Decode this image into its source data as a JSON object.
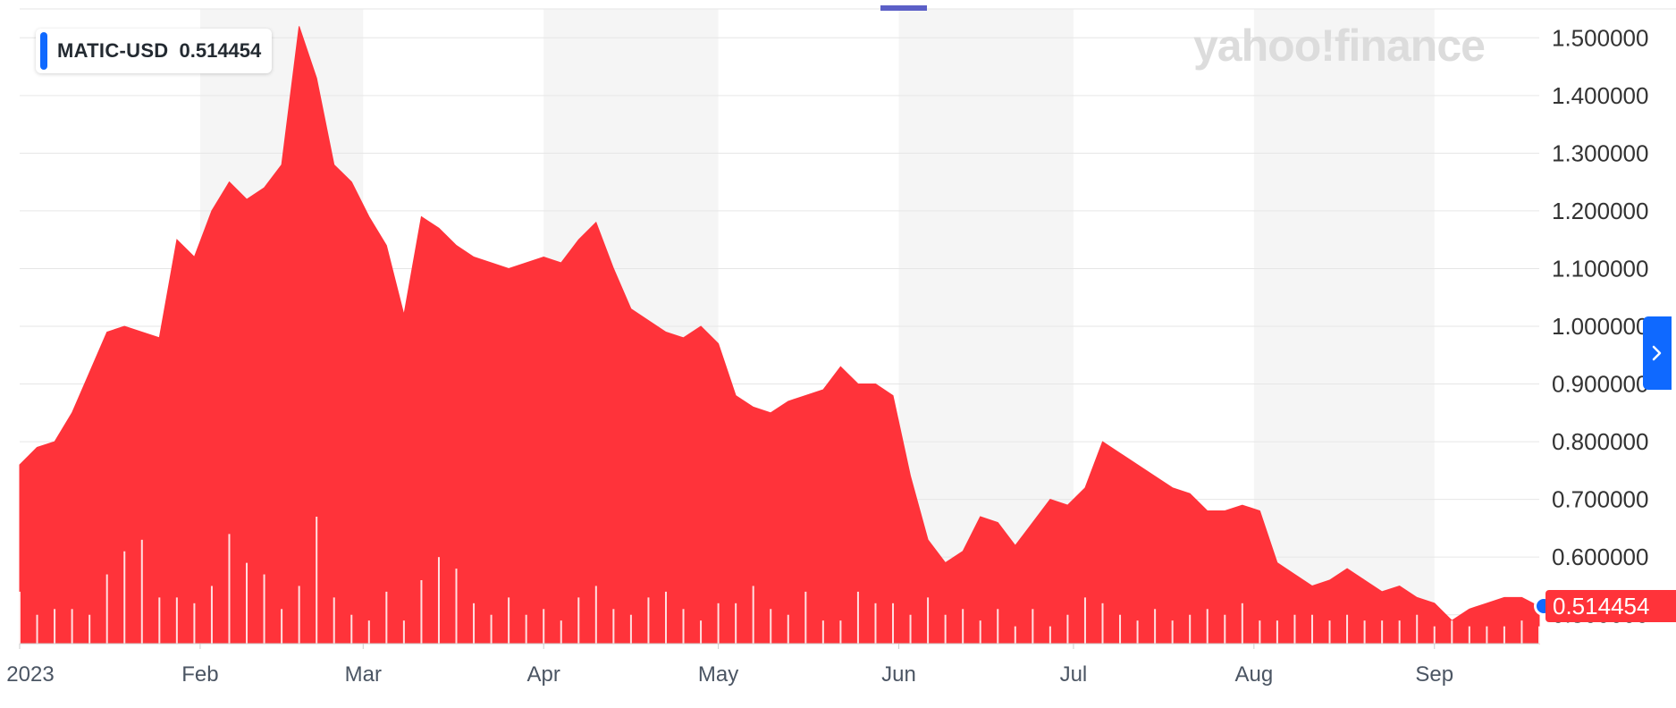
{
  "legend": {
    "symbol": "MATIC-USD",
    "value": "0.514454"
  },
  "watermark": "yahoo!finance",
  "last_price_label": "0.514454",
  "colors": {
    "area": "#ff333a",
    "accent": "#0f69ff",
    "band": "#f5f5f5",
    "grid": "#e6e6e6",
    "top_marker": "#5b5fc7"
  },
  "icons": {
    "nav": "chevron-right-icon",
    "dot": "current-price-dot"
  },
  "chart_data": {
    "type": "area",
    "title": "",
    "xlabel": "",
    "ylabel": "",
    "x_tick_labels": [
      "2023",
      "Feb",
      "Mar",
      "Apr",
      "May",
      "Jun",
      "Jul",
      "Aug",
      "Sep"
    ],
    "y_tick_labels": [
      "0.500000",
      "0.600000",
      "0.700000",
      "0.800000",
      "0.900000",
      "1.000000",
      "1.100000",
      "1.200000",
      "1.300000",
      "1.400000",
      "1.500000"
    ],
    "ylim": [
      0.45,
      1.55
    ],
    "grid": true,
    "legend": "top-left",
    "series": [
      {
        "name": "MATIC-USD",
        "x": [
          "2023-01-01",
          "2023-01-04",
          "2023-01-07",
          "2023-01-10",
          "2023-01-13",
          "2023-01-16",
          "2023-01-19",
          "2023-01-22",
          "2023-01-25",
          "2023-01-28",
          "2023-01-31",
          "2023-02-03",
          "2023-02-06",
          "2023-02-09",
          "2023-02-12",
          "2023-02-15",
          "2023-02-18",
          "2023-02-21",
          "2023-02-24",
          "2023-02-27",
          "2023-03-02",
          "2023-03-05",
          "2023-03-08",
          "2023-03-11",
          "2023-03-14",
          "2023-03-17",
          "2023-03-20",
          "2023-03-23",
          "2023-03-26",
          "2023-03-29",
          "2023-04-01",
          "2023-04-04",
          "2023-04-07",
          "2023-04-10",
          "2023-04-13",
          "2023-04-16",
          "2023-04-19",
          "2023-04-22",
          "2023-04-25",
          "2023-04-28",
          "2023-05-01",
          "2023-05-04",
          "2023-05-07",
          "2023-05-10",
          "2023-05-13",
          "2023-05-16",
          "2023-05-19",
          "2023-05-22",
          "2023-05-25",
          "2023-05-28",
          "2023-05-31",
          "2023-06-03",
          "2023-06-06",
          "2023-06-09",
          "2023-06-12",
          "2023-06-15",
          "2023-06-18",
          "2023-06-21",
          "2023-06-24",
          "2023-06-27",
          "2023-06-30",
          "2023-07-03",
          "2023-07-06",
          "2023-07-09",
          "2023-07-12",
          "2023-07-15",
          "2023-07-18",
          "2023-07-21",
          "2023-07-24",
          "2023-07-27",
          "2023-07-30",
          "2023-08-02",
          "2023-08-05",
          "2023-08-08",
          "2023-08-11",
          "2023-08-14",
          "2023-08-17",
          "2023-08-20",
          "2023-08-23",
          "2023-08-26",
          "2023-08-29",
          "2023-09-01",
          "2023-09-04",
          "2023-09-07",
          "2023-09-10",
          "2023-09-13",
          "2023-09-16",
          "2023-09-19"
        ],
        "values": [
          0.76,
          0.79,
          0.8,
          0.85,
          0.92,
          0.99,
          1.0,
          0.99,
          0.98,
          1.15,
          1.12,
          1.2,
          1.25,
          1.22,
          1.24,
          1.28,
          1.52,
          1.43,
          1.28,
          1.25,
          1.19,
          1.14,
          1.02,
          1.19,
          1.17,
          1.14,
          1.12,
          1.11,
          1.1,
          1.11,
          1.12,
          1.11,
          1.15,
          1.18,
          1.1,
          1.03,
          1.01,
          0.99,
          0.98,
          1.0,
          0.97,
          0.88,
          0.86,
          0.85,
          0.87,
          0.88,
          0.89,
          0.93,
          0.9,
          0.9,
          0.88,
          0.74,
          0.63,
          0.59,
          0.61,
          0.67,
          0.66,
          0.62,
          0.66,
          0.7,
          0.69,
          0.72,
          0.8,
          0.78,
          0.76,
          0.74,
          0.72,
          0.71,
          0.68,
          0.68,
          0.69,
          0.68,
          0.59,
          0.57,
          0.55,
          0.56,
          0.58,
          0.56,
          0.54,
          0.55,
          0.53,
          0.52,
          0.49,
          0.51,
          0.52,
          0.53,
          0.53,
          0.514454
        ]
      }
    ],
    "volume": {
      "name": "Volume",
      "values": [
        0.09,
        0.05,
        0.06,
        0.06,
        0.05,
        0.12,
        0.16,
        0.18,
        0.08,
        0.08,
        0.07,
        0.1,
        0.19,
        0.14,
        0.12,
        0.06,
        0.1,
        0.22,
        0.08,
        0.05,
        0.04,
        0.09,
        0.04,
        0.11,
        0.15,
        0.13,
        0.07,
        0.05,
        0.08,
        0.05,
        0.06,
        0.04,
        0.08,
        0.1,
        0.06,
        0.05,
        0.08,
        0.09,
        0.06,
        0.04,
        0.07,
        0.07,
        0.1,
        0.06,
        0.05,
        0.09,
        0.04,
        0.04,
        0.09,
        0.07,
        0.07,
        0.05,
        0.08,
        0.05,
        0.06,
        0.04,
        0.06,
        0.03,
        0.06,
        0.03,
        0.05,
        0.08,
        0.07,
        0.05,
        0.04,
        0.06,
        0.04,
        0.05,
        0.06,
        0.05,
        0.07,
        0.04,
        0.04,
        0.05,
        0.05,
        0.04,
        0.05,
        0.04,
        0.04,
        0.04,
        0.05,
        0.03,
        0.04,
        0.03,
        0.03,
        0.03,
        0.04,
        0.03
      ]
    }
  }
}
